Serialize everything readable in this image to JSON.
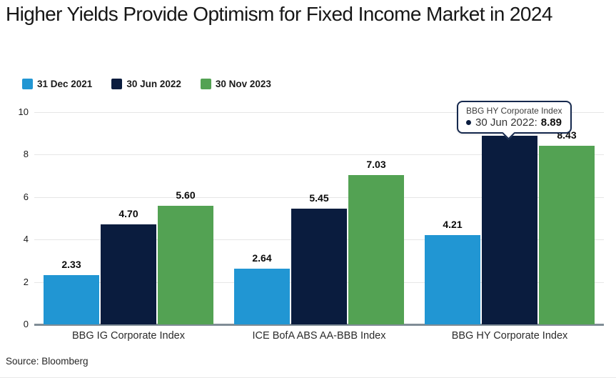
{
  "title": "Higher Yields Provide Optimism for Fixed Income Market in 2024",
  "source": "Source: Bloomberg",
  "colors": {
    "series_blue": "#2196d3",
    "series_navy": "#0a1c3e",
    "series_green": "#53a253",
    "gridline": "#e6e6e6",
    "axis_line": "#808d96",
    "tooltip_border": "#16294e"
  },
  "tooltip": {
    "category": "BBG HY Corporate Index",
    "series_label": "30 Jun 2022:",
    "value": "8.89",
    "target": {
      "category_index": 2,
      "series_index": 1
    }
  },
  "chart_data": {
    "type": "bar",
    "title": "Higher Yields Provide Optimism for Fixed Income Market in 2024",
    "categories": [
      "BBG IG Corporate Index",
      "ICE BofA ABS AA-BBB Index",
      "BBG HY Corporate Index"
    ],
    "series": [
      {
        "name": "31 Dec 2021",
        "color": "#2196d3",
        "values": [
          2.33,
          2.64,
          4.21
        ]
      },
      {
        "name": "30 Jun 2022",
        "color": "#0a1c3e",
        "values": [
          4.7,
          5.45,
          8.89
        ]
      },
      {
        "name": "30 Nov 2023",
        "color": "#53a253",
        "values": [
          5.6,
          7.03,
          8.43
        ]
      }
    ],
    "value_labels": [
      [
        "2.33",
        "4.70",
        "5.60"
      ],
      [
        "2.64",
        "5.45",
        "7.03"
      ],
      [
        "4.21",
        null,
        "8.43"
      ]
    ],
    "xlabel": "",
    "ylabel": "",
    "ylim": [
      0,
      10
    ],
    "yticks": [
      0,
      2,
      4,
      6,
      8,
      10
    ],
    "grid": "horizontal",
    "legend_position": "top-left",
    "source": "Bloomberg"
  }
}
